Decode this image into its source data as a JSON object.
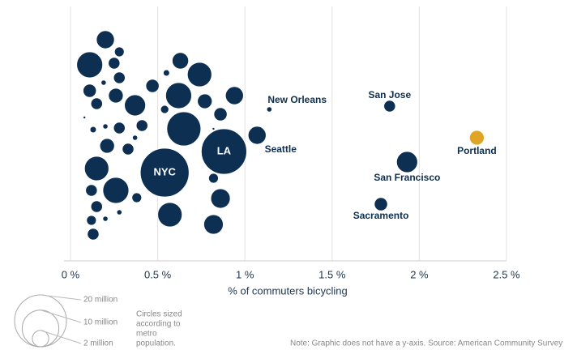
{
  "chart_data": {
    "type": "bubble",
    "x_label": "% of commuters bicycling",
    "xlim": [
      0,
      2.5
    ],
    "xticks": [
      {
        "value": 0,
        "label": "0 %"
      },
      {
        "value": 0.5,
        "label": "0.5 %"
      },
      {
        "value": 1,
        "label": "1 %"
      },
      {
        "value": 1.5,
        "label": "1.5 %"
      },
      {
        "value": 2,
        "label": "2 %"
      },
      {
        "value": 2.5,
        "label": "2.5 %"
      }
    ],
    "grid": true,
    "categories": [
      null,
      null,
      null,
      null,
      null,
      null,
      null,
      null,
      null,
      null,
      null,
      null,
      null,
      null,
      null,
      null,
      null,
      null,
      null,
      null,
      null,
      null,
      null,
      null,
      null,
      null,
      null,
      null,
      null,
      null,
      null,
      null,
      null,
      null,
      null,
      null,
      null,
      null,
      null,
      null,
      null,
      null,
      "NYC",
      "LA",
      "Seattle",
      "New Orleans",
      "San Jose",
      "Portland",
      "San Francisco",
      "Sacramento"
    ],
    "x": [
      0.2,
      0.11,
      0.28,
      0.25,
      0.28,
      0.19,
      0.11,
      0.15,
      0.26,
      0.37,
      0.47,
      0.55,
      0.63,
      0.74,
      0.62,
      0.54,
      0.77,
      0.86,
      0.94,
      0.08,
      0.13,
      0.2,
      0.28,
      0.41,
      0.37,
      0.65,
      0.82,
      0.21,
      0.33,
      0.15,
      0.26,
      0.12,
      0.38,
      0.15,
      0.28,
      0.2,
      0.12,
      0.13,
      0.57,
      0.82,
      0.86,
      0.82,
      0.54,
      0.88,
      1.07,
      1.14,
      1.83,
      2.33,
      1.93,
      1.78
    ],
    "sizes": [
      2.4,
      5.0,
      0.7,
      1.0,
      1.0,
      0.2,
      1.3,
      1.0,
      1.6,
      3.3,
      1.3,
      0.3,
      2.0,
      4.4,
      5.0,
      0.5,
      1.6,
      1.3,
      2.4,
      0.05,
      0.3,
      0.2,
      1.0,
      1.0,
      0.2,
      8.6,
      0.05,
      1.6,
      1.0,
      4.4,
      5.0,
      1.0,
      0.7,
      1.0,
      0.2,
      0.2,
      0.7,
      1.0,
      4.4,
      0.7,
      2.8,
      2.8,
      17.6,
      15.3,
      2.4,
      0.2,
      1.0,
      1.6,
      3.3,
      1.3
    ],
    "colors": [
      "#0d2f52",
      "#0d2f52",
      "#0d2f52",
      "#0d2f52",
      "#0d2f52",
      "#0d2f52",
      "#0d2f52",
      "#0d2f52",
      "#0d2f52",
      "#0d2f52",
      "#0d2f52",
      "#0d2f52",
      "#0d2f52",
      "#0d2f52",
      "#0d2f52",
      "#0d2f52",
      "#0d2f52",
      "#0d2f52",
      "#0d2f52",
      "#0d2f52",
      "#0d2f52",
      "#0d2f52",
      "#0d2f52",
      "#0d2f52",
      "#0d2f52",
      "#0d2f52",
      "#0d2f52",
      "#0d2f52",
      "#0d2f52",
      "#0d2f52",
      "#0d2f52",
      "#0d2f52",
      "#0d2f52",
      "#0d2f52",
      "#0d2f52",
      "#0d2f52",
      "#0d2f52",
      "#0d2f52",
      "#0d2f52",
      "#0d2f52",
      "#0d2f52",
      "#0d2f52",
      "#0d2f52",
      "#0d2f52",
      "#0d2f52",
      "#0d2f52",
      "#0d2f52",
      "#e0a526",
      "#0d2f52",
      "#0d2f52"
    ],
    "size_legend": [
      {
        "value": 20,
        "label": "20 million"
      },
      {
        "value": 10,
        "label": "10 million"
      },
      {
        "value": 2,
        "label": "2 million"
      }
    ],
    "size_note": [
      "Circles sized",
      "according to",
      "metro",
      "population."
    ],
    "note": "Note: Graphic does not have a y-axis. Source: American Community Survey"
  }
}
